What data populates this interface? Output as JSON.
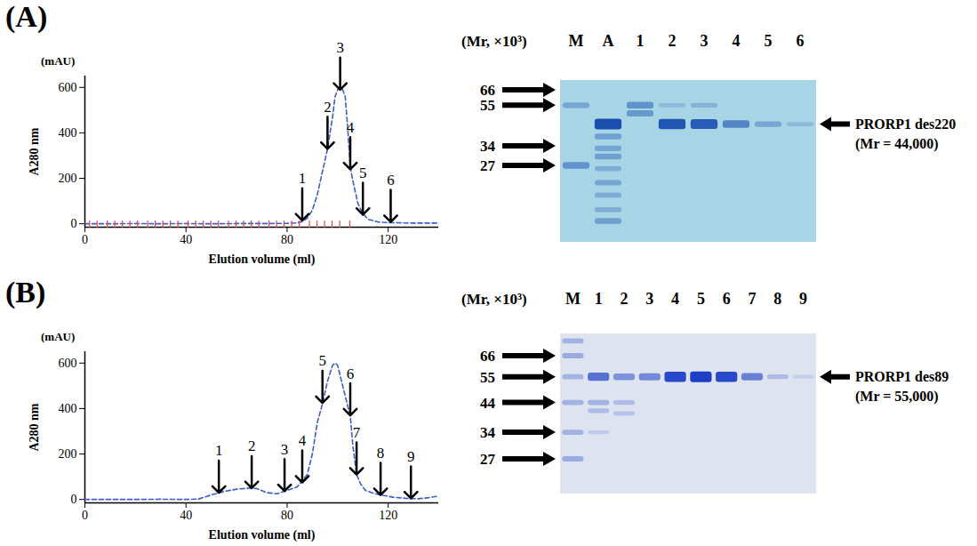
{
  "chart_data": [
    {
      "type": "line",
      "title": "(A)",
      "xlabel": "Elution volume (ml)",
      "ylabel": "A280 nm",
      "y_units": "(mAU)",
      "x": [
        0,
        10,
        20,
        30,
        40,
        50,
        60,
        70,
        80,
        84,
        86,
        88,
        90,
        92,
        94,
        96,
        98,
        99,
        100,
        101,
        102,
        103,
        104,
        105,
        106,
        108,
        110,
        112,
        116,
        120,
        130,
        140
      ],
      "values": [
        0,
        0,
        1,
        0,
        1,
        0,
        1,
        1,
        2,
        4,
        10,
        25,
        60,
        130,
        230,
        330,
        470,
        560,
        590,
        600,
        590,
        560,
        420,
        250,
        190,
        90,
        45,
        20,
        8,
        5,
        3,
        3
      ],
      "color": "#3a5fcd",
      "line_style": "dashed",
      "xlim": [
        0,
        140
      ],
      "ylim": [
        -15,
        650
      ],
      "xticks": [
        0,
        40,
        80,
        120
      ],
      "yticks": [
        0,
        200,
        400,
        600
      ],
      "annotations": [
        {
          "text": "1",
          "x": 86,
          "y": 15
        },
        {
          "text": "2",
          "x": 96,
          "y": 330
        },
        {
          "text": "3",
          "x": 101,
          "y": 590
        },
        {
          "text": "4",
          "x": 105,
          "y": 240
        },
        {
          "text": "5",
          "x": 110,
          "y": 40
        },
        {
          "text": "6",
          "x": 121,
          "y": 8
        }
      ],
      "fraction_marks": {
        "color": "#e8474a",
        "x": [
          2,
          5,
          9,
          12,
          15,
          18,
          21,
          25,
          28,
          31,
          34,
          37,
          41,
          44,
          47,
          50,
          53,
          57,
          60,
          63,
          66,
          69,
          73,
          76,
          79,
          82,
          85,
          89,
          92,
          95,
          98,
          101,
          105
        ]
      }
    },
    {
      "type": "line",
      "title": "(B)",
      "xlabel": "Elution volume (ml)",
      "ylabel": "A280 nm",
      "y_units": "(mAU)",
      "x": [
        0,
        10,
        20,
        30,
        40,
        45,
        50,
        55,
        60,
        65,
        68,
        72,
        76,
        80,
        84,
        88,
        90,
        92,
        94,
        96,
        98,
        99,
        100,
        102,
        104,
        105,
        106,
        107.5,
        109,
        111,
        114,
        117,
        122,
        127,
        132,
        136,
        140
      ],
      "values": [
        0,
        0,
        0,
        1,
        0,
        2,
        20,
        35,
        45,
        50,
        48,
        30,
        25,
        40,
        55,
        110,
        200,
        340,
        420,
        520,
        590,
        600,
        590,
        500,
        410,
        370,
        240,
        110,
        70,
        40,
        28,
        20,
        10,
        5,
        3,
        8,
        15
      ],
      "color": "#3a5fcd",
      "line_style": "dashed",
      "xlim": [
        0,
        140
      ],
      "ylim": [
        -15,
        650
      ],
      "xticks": [
        0,
        40,
        80,
        120
      ],
      "yticks": [
        0,
        200,
        400,
        600
      ],
      "annotations": [
        {
          "text": "1",
          "x": 53,
          "y": 30
        },
        {
          "text": "2",
          "x": 66,
          "y": 50
        },
        {
          "text": "3",
          "x": 79,
          "y": 37
        },
        {
          "text": "4",
          "x": 86,
          "y": 75
        },
        {
          "text": "5",
          "x": 94,
          "y": 425
        },
        {
          "text": "6",
          "x": 105,
          "y": 370
        },
        {
          "text": "7",
          "x": 107.5,
          "y": 110
        },
        {
          "text": "8",
          "x": 117,
          "y": 20
        },
        {
          "text": "9",
          "x": 129,
          "y": 5
        }
      ]
    }
  ],
  "gels": [
    {
      "header": "(Mr, ×10³)",
      "lanes": [
        "M",
        "A",
        "1",
        "2",
        "3",
        "4",
        "5",
        "6"
      ],
      "markers": [
        66,
        55,
        34,
        27
      ],
      "band_label": "PRORP1 des220",
      "band_mr_label": "(Mr = 44,000)",
      "band_mr": 44,
      "background": "#a8d5e6",
      "band_color": "#1a4fb0",
      "bands": [
        [
          {
            "mr": 55,
            "intensity": 0.35
          },
          {
            "mr": 27,
            "intensity": 0.5
          }
        ],
        [
          {
            "mr": 44,
            "intensity": 1
          },
          {
            "mr": 38,
            "intensity": 0.4
          },
          {
            "mr": 33,
            "intensity": 0.35
          },
          {
            "mr": 30,
            "intensity": 0.4
          },
          {
            "mr": 26,
            "intensity": 0.3
          },
          {
            "mr": 22,
            "intensity": 0.35
          },
          {
            "mr": 19,
            "intensity": 0.3
          },
          {
            "mr": 16,
            "intensity": 0.3
          },
          {
            "mr": 14,
            "intensity": 0.4
          }
        ],
        [
          {
            "mr": 55,
            "intensity": 0.5
          },
          {
            "mr": 50,
            "intensity": 0.45
          }
        ],
        [
          {
            "mr": 55,
            "intensity": 0.2
          },
          {
            "mr": 44,
            "intensity": 0.95
          }
        ],
        [
          {
            "mr": 55,
            "intensity": 0.25
          },
          {
            "mr": 44,
            "intensity": 0.9
          }
        ],
        [
          {
            "mr": 44,
            "intensity": 0.6
          }
        ],
        [
          {
            "mr": 44,
            "intensity": 0.35
          }
        ],
        [
          {
            "mr": 44,
            "intensity": 0.2
          }
        ]
      ]
    },
    {
      "header": "(Mr, ×10³)",
      "lanes": [
        "M",
        "1",
        "2",
        "3",
        "4",
        "5",
        "6",
        "7",
        "8",
        "9"
      ],
      "markers": [
        66,
        55,
        44,
        34,
        27
      ],
      "band_label": "PRORP1 des89",
      "band_mr_label": "(Mr = 55,000)",
      "band_mr": 55,
      "background": "#dde4f0",
      "band_color": "#1e3ec8",
      "bands": [
        [
          {
            "mr": 75,
            "intensity": 0.3
          },
          {
            "mr": 66,
            "intensity": 0.35
          },
          {
            "mr": 55,
            "intensity": 0.3
          },
          {
            "mr": 44,
            "intensity": 0.3
          },
          {
            "mr": 34,
            "intensity": 0.3
          },
          {
            "mr": 27,
            "intensity": 0.35
          }
        ],
        [
          {
            "mr": 55,
            "intensity": 0.7
          },
          {
            "mr": 44,
            "intensity": 0.3
          },
          {
            "mr": 41,
            "intensity": 0.25
          },
          {
            "mr": 34,
            "intensity": 0.15
          }
        ],
        [
          {
            "mr": 55,
            "intensity": 0.5
          },
          {
            "mr": 44,
            "intensity": 0.25
          },
          {
            "mr": 40,
            "intensity": 0.2
          }
        ],
        [
          {
            "mr": 55,
            "intensity": 0.55
          }
        ],
        [
          {
            "mr": 55,
            "intensity": 0.95
          }
        ],
        [
          {
            "mr": 55,
            "intensity": 1
          }
        ],
        [
          {
            "mr": 55,
            "intensity": 0.95
          }
        ],
        [
          {
            "mr": 55,
            "intensity": 0.6
          }
        ],
        [
          {
            "mr": 55,
            "intensity": 0.25
          }
        ],
        [
          {
            "mr": 55,
            "intensity": 0.12
          }
        ]
      ]
    }
  ]
}
